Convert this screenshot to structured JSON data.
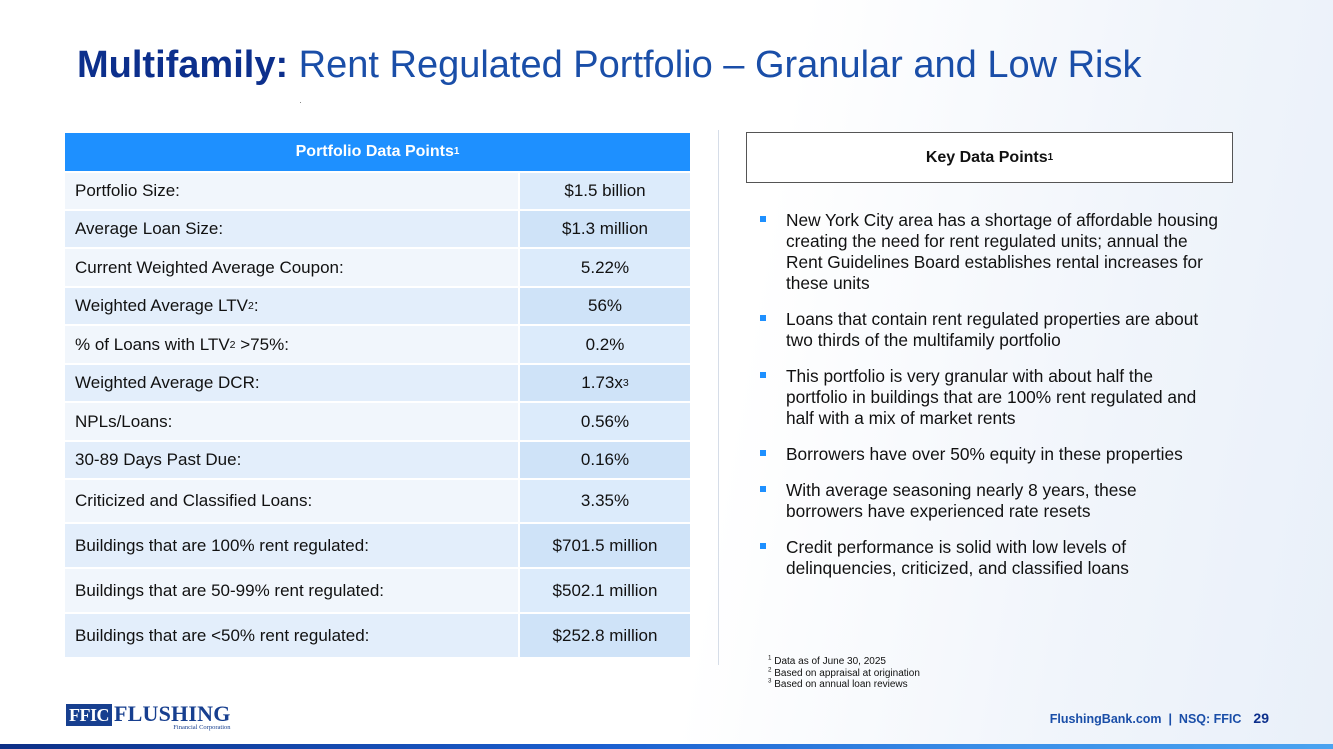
{
  "title": {
    "bold": "Multifamily:",
    "rest": " Rent Regulated Portfolio – Granular and Low Risk"
  },
  "table": {
    "header": "Portfolio Data Points",
    "header_sup": "1",
    "rows": [
      {
        "label": "Portfolio Size:",
        "label_sup": "",
        "label_after": "",
        "value": "$1.5 billion",
        "value_sup": ""
      },
      {
        "label": "Average Loan Size:",
        "label_sup": "",
        "label_after": "",
        "value": "$1.3 million",
        "value_sup": ""
      },
      {
        "label": "Current Weighted Average Coupon:",
        "label_sup": "",
        "label_after": "",
        "value": "5.22%",
        "value_sup": ""
      },
      {
        "label": "Weighted Average LTV",
        "label_sup": "2",
        "label_after": ":",
        "value": "56%",
        "value_sup": ""
      },
      {
        "label": "% of Loans with LTV",
        "label_sup": "2",
        "label_after": " >75%:",
        "value": "0.2%",
        "value_sup": ""
      },
      {
        "label": "Weighted Average DCR:",
        "label_sup": "",
        "label_after": "",
        "value": "1.73x",
        "value_sup": "3"
      },
      {
        "label": "NPLs/Loans:",
        "label_sup": "",
        "label_after": "",
        "value": "0.56%",
        "value_sup": ""
      },
      {
        "label": "30-89 Days Past Due:",
        "label_sup": "",
        "label_after": "",
        "value": "0.16%",
        "value_sup": ""
      },
      {
        "label": "Criticized and Classified Loans:",
        "label_sup": "",
        "label_after": "",
        "value": "3.35%",
        "value_sup": ""
      },
      {
        "label": "Buildings that are 100% rent regulated:",
        "label_sup": "",
        "label_after": "",
        "value": "$701.5 million",
        "value_sup": ""
      },
      {
        "label": "Buildings that are 50-99% rent regulated:",
        "label_sup": "",
        "label_after": "",
        "value": "$502.1 million",
        "value_sup": ""
      },
      {
        "label": "Buildings that are <50% rent regulated:",
        "label_sup": "",
        "label_after": "",
        "value": "$252.8 million",
        "value_sup": ""
      }
    ]
  },
  "key_points": {
    "header": "Key Data Points",
    "header_sup": "1",
    "bullets": [
      "New York City area has a shortage of affordable housing creating the need for rent regulated units; annual the Rent Guidelines Board establishes rental increases for these units",
      "Loans that contain rent regulated properties are about two thirds of the multifamily portfolio",
      "This portfolio is very granular with about half the portfolio in buildings that are 100% rent regulated and half with a mix of market rents",
      "Borrowers have over 50% equity in these properties",
      "With average seasoning nearly 8 years, these borrowers have experienced rate resets",
      "Credit performance is solid with low levels of delinquencies, criticized, and classified loans"
    ]
  },
  "footnotes": [
    {
      "num": "1",
      "text": " Data as of June 30, 2025"
    },
    {
      "num": "2",
      "text": " Based on appraisal at origination"
    },
    {
      "num": "3",
      "text": " Based on annual loan reviews"
    }
  ],
  "footer": {
    "logo_ffic": "FFIC",
    "logo_name": "FLUSHING",
    "logo_sub": "Financial Corporation",
    "site": "FlushingBank.com  |  NSQ: FFIC",
    "page": "29"
  },
  "colors": {
    "accent": "#1e90ff",
    "title": "#1a4ea8",
    "title_bold": "#0c2f8c"
  }
}
